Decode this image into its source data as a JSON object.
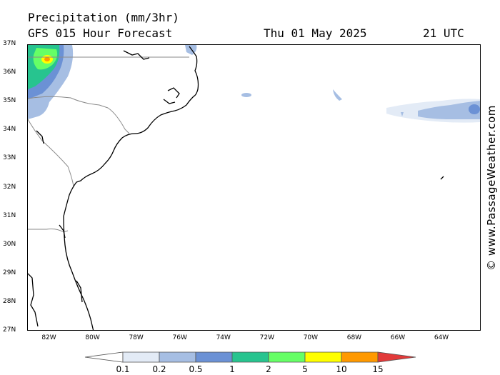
{
  "header": {
    "title": "Precipitation (mm/3hr)",
    "model_line": "GFS 015 Hour Forecast",
    "date": "Thu 01 May 2025",
    "time": "21 UTC"
  },
  "map": {
    "lat_labels": [
      "37N",
      "36N",
      "35N",
      "34N",
      "33N",
      "32N",
      "31N",
      "30N",
      "29N",
      "28N",
      "27N"
    ],
    "lon_labels": [
      "82W",
      "80W",
      "78W",
      "76W",
      "74W",
      "72W",
      "70W",
      "68W",
      "66W",
      "64W"
    ],
    "lat_range": [
      27,
      37
    ],
    "lon_range": [
      -83,
      -62.2
    ]
  },
  "colorbar": {
    "labels": [
      "0.1",
      "0.2",
      "0.5",
      "1",
      "2",
      "5",
      "10",
      "15"
    ],
    "colors": [
      "#ffffff",
      "#e3ebf6",
      "#a6bee3",
      "#6b91d5",
      "#27c48f",
      "#66ff66",
      "#ffff00",
      "#ff9900",
      "#e23a3a"
    ]
  },
  "credit": "© www.PassageWeather.com"
}
